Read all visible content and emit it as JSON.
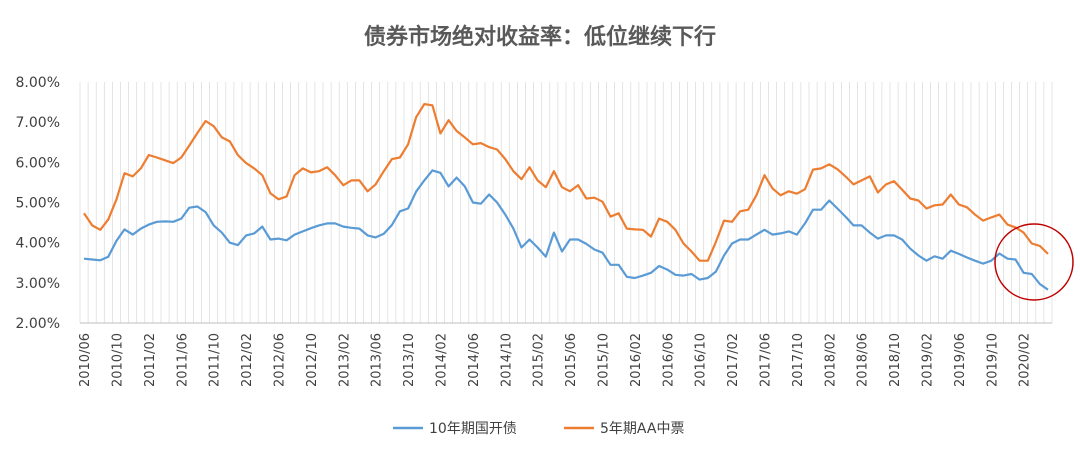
{
  "chart_data": {
    "type": "line",
    "title": "债券市场绝对收益率：低位继续下行",
    "xlabel": "",
    "ylabel": "",
    "ylim": [
      0.02,
      0.08
    ],
    "yticks": [
      "2.00%",
      "3.00%",
      "4.00%",
      "5.00%",
      "6.00%",
      "7.00%",
      "8.00%"
    ],
    "yticks_values": [
      0.02,
      0.03,
      0.04,
      0.05,
      0.06,
      0.07,
      0.08
    ],
    "x_tick_labels": [
      "2010/06",
      "2010/10",
      "2011/02",
      "2011/06",
      "2011/10",
      "2012/02",
      "2012/06",
      "2012/10",
      "2013/02",
      "2013/06",
      "2013/10",
      "2014/02",
      "2014/06",
      "2014/10",
      "2015/02",
      "2015/06",
      "2015/10",
      "2016/02",
      "2016/06",
      "2016/10",
      "2017/02",
      "2017/06",
      "2017/10",
      "2018/02",
      "2018/06",
      "2018/10",
      "2019/02",
      "2019/06",
      "2019/10",
      "2020/02"
    ],
    "grid": "vertical lines",
    "legend": "bottom",
    "annotation": "red circle around the latest values",
    "series": [
      {
        "name": "10年期国开债",
        "color": "#5B9BD5",
        "values": [
          0.036,
          0.0358,
          0.0356,
          0.0365,
          0.0405,
          0.0433,
          0.042,
          0.0435,
          0.0445,
          0.0452,
          0.0453,
          0.0452,
          0.046,
          0.0487,
          0.049,
          0.0476,
          0.0443,
          0.0425,
          0.04,
          0.0394,
          0.0418,
          0.0423,
          0.044,
          0.0408,
          0.041,
          0.0406,
          0.042,
          0.0428,
          0.0436,
          0.0443,
          0.0448,
          0.0448,
          0.044,
          0.0437,
          0.0435,
          0.0418,
          0.0413,
          0.0422,
          0.0444,
          0.0478,
          0.0485,
          0.0527,
          0.0555,
          0.058,
          0.0574,
          0.054,
          0.0562,
          0.054,
          0.05,
          0.0497,
          0.052,
          0.05,
          0.047,
          0.0435,
          0.0388,
          0.0408,
          0.0388,
          0.0365,
          0.0425,
          0.0378,
          0.0408,
          0.0408,
          0.0397,
          0.0383,
          0.0375,
          0.0345,
          0.0345,
          0.0315,
          0.0312,
          0.0318,
          0.0325,
          0.0342,
          0.0333,
          0.032,
          0.0318,
          0.0322,
          0.0308,
          0.0312,
          0.0328,
          0.0368,
          0.0398,
          0.0408,
          0.0408,
          0.042,
          0.0432,
          0.042,
          0.0423,
          0.0428,
          0.042,
          0.0448,
          0.0482,
          0.0482,
          0.0505,
          0.0485,
          0.0465,
          0.0443,
          0.0443,
          0.0425,
          0.041,
          0.0418,
          0.0418,
          0.0408,
          0.0385,
          0.0368,
          0.0355,
          0.0366,
          0.036,
          0.038,
          0.0372,
          0.0363,
          0.0355,
          0.0348,
          0.0355,
          0.0373,
          0.036,
          0.0358,
          0.0325,
          0.0322,
          0.0297,
          0.0283
        ]
      },
      {
        "name": "5年期AA中票",
        "color": "#ED7D31",
        "values": [
          0.0473,
          0.0443,
          0.0432,
          0.0458,
          0.0508,
          0.0573,
          0.0565,
          0.0585,
          0.0618,
          0.0612,
          0.0605,
          0.0598,
          0.0612,
          0.0642,
          0.0673,
          0.0703,
          0.069,
          0.0662,
          0.0652,
          0.0618,
          0.0598,
          0.0585,
          0.0568,
          0.0523,
          0.0508,
          0.0515,
          0.0568,
          0.0585,
          0.0575,
          0.0578,
          0.0588,
          0.0568,
          0.0543,
          0.0555,
          0.0555,
          0.0528,
          0.0545,
          0.0578,
          0.0608,
          0.0612,
          0.0645,
          0.0712,
          0.0745,
          0.0742,
          0.0672,
          0.0705,
          0.0678,
          0.0662,
          0.0645,
          0.0648,
          0.0638,
          0.0632,
          0.0608,
          0.0578,
          0.0558,
          0.0588,
          0.0555,
          0.0538,
          0.0578,
          0.0538,
          0.0528,
          0.0543,
          0.051,
          0.0512,
          0.0502,
          0.0465,
          0.0473,
          0.0435,
          0.0433,
          0.0432,
          0.0415,
          0.046,
          0.0452,
          0.0432,
          0.0398,
          0.0378,
          0.0355,
          0.0355,
          0.0402,
          0.0455,
          0.0452,
          0.0478,
          0.0482,
          0.0518,
          0.0568,
          0.0535,
          0.0518,
          0.0528,
          0.0522,
          0.0533,
          0.0582,
          0.0585,
          0.0595,
          0.0583,
          0.0565,
          0.0545,
          0.0555,
          0.0565,
          0.0525,
          0.0545,
          0.0553,
          0.0532,
          0.051,
          0.0505,
          0.0485,
          0.0493,
          0.0495,
          0.052,
          0.0495,
          0.0488,
          0.047,
          0.0455,
          0.0463,
          0.047,
          0.0445,
          0.0438,
          0.0425,
          0.0398,
          0.0392,
          0.0372
        ]
      }
    ]
  }
}
